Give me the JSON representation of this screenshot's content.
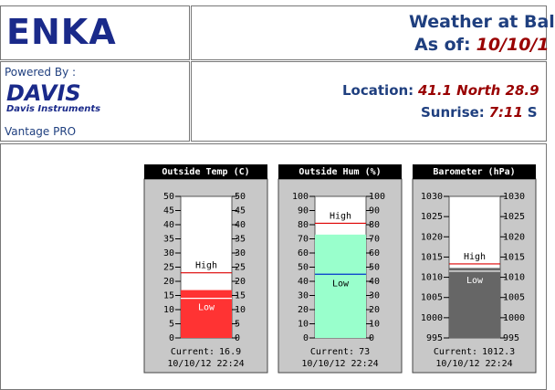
{
  "header": {
    "logo": "ENKA",
    "title": "Weather at Bal",
    "as_of_label": "As of:",
    "as_of": "10/10/1"
  },
  "sidebar": {
    "powered": "Powered By :",
    "brand": "DAVIS",
    "brand_sub": "Davis Instruments",
    "product": "Vantage PRO"
  },
  "info": {
    "location_label": "Location:",
    "location": "41.1 North 28.9",
    "sunrise_label": "Sunrise:",
    "sunrise": "7:11",
    "more": "S"
  },
  "gauges": [
    {
      "title": "Outside Temp (C)",
      "ylim": [
        0,
        50
      ],
      "yticks": [
        0,
        5,
        10,
        15,
        20,
        25,
        30,
        35,
        40,
        45,
        50
      ],
      "current": 16.9,
      "high": 23,
      "low": 14,
      "high_label": "High",
      "low_label": "Low",
      "current_label": "Current:",
      "timestamp": "10/10/12 22:24",
      "color": "#ff3333",
      "low_color": "#ffffff"
    },
    {
      "title": "Outside Hum (%)",
      "ylim": [
        0,
        100
      ],
      "yticks": [
        0,
        10,
        20,
        30,
        40,
        50,
        60,
        70,
        80,
        90,
        100
      ],
      "current": 73,
      "high": 81,
      "low": 45,
      "high_label": "High",
      "low_label": "Low",
      "current_label": "Current:",
      "timestamp": "10/10/12 22:24",
      "color": "#99ffcc",
      "low_color": "#0033cc"
    },
    {
      "title": "Barometer (hPa)",
      "ylim": [
        995,
        1030
      ],
      "yticks": [
        995,
        1000,
        1005,
        1010,
        1015,
        1020,
        1025,
        1030
      ],
      "current": 1012.3,
      "high": 1013.3,
      "low": 1011.5,
      "high_label": "High",
      "low_label": "Low",
      "current_label": "Current:",
      "timestamp": "10/10/12 22:24",
      "color": "#666666",
      "low_color": "#ffffff"
    }
  ]
}
